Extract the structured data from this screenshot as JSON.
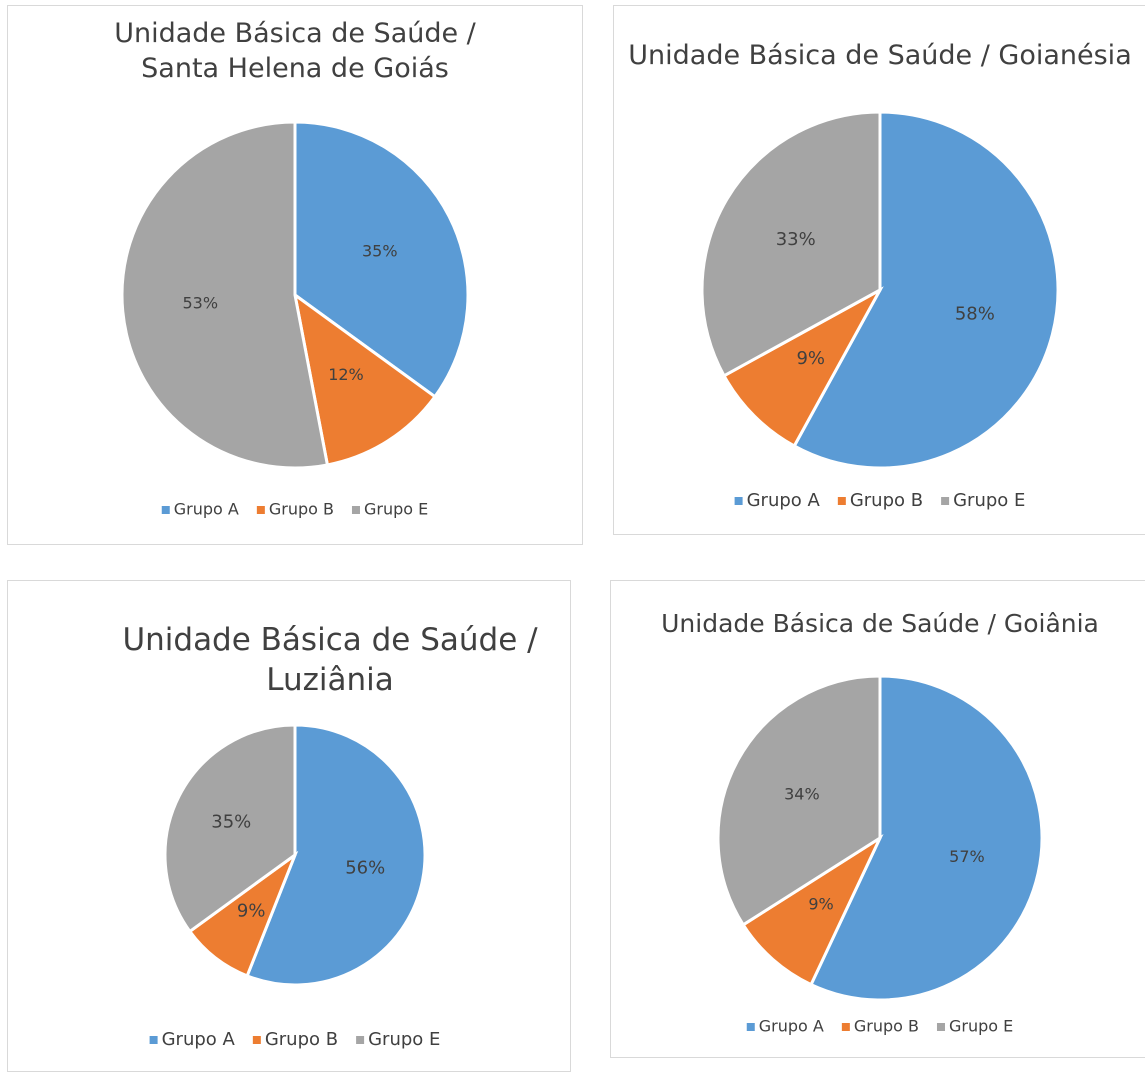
{
  "chart_data": [
    {
      "type": "pie",
      "title": "Unidade Básica de Saúde / Santa Helena de Goiás",
      "categories": [
        "Grupo A",
        "Grupo B",
        "Grupo E"
      ],
      "values": [
        35,
        12,
        53
      ],
      "value_labels": [
        "35%",
        "12%",
        "53%"
      ],
      "colors": [
        "#5b9bd5",
        "#ed7d31",
        "#a5a5a5"
      ],
      "legend": "bottom"
    },
    {
      "type": "pie",
      "title": "Unidade Básica de Saúde / Goianésia",
      "categories": [
        "Grupo A",
        "Grupo B",
        "Grupo E"
      ],
      "values": [
        58,
        9,
        33
      ],
      "value_labels": [
        "58%",
        "9%",
        "33%"
      ],
      "colors": [
        "#5b9bd5",
        "#ed7d31",
        "#a5a5a5"
      ],
      "legend": "bottom"
    },
    {
      "type": "pie",
      "title": "Unidade Básica de Saúde / Luziânia",
      "categories": [
        "Grupo A",
        "Grupo B",
        "Grupo E"
      ],
      "values": [
        56,
        9,
        35
      ],
      "value_labels": [
        "56%",
        "9%",
        "35%"
      ],
      "colors": [
        "#5b9bd5",
        "#ed7d31",
        "#a5a5a5"
      ],
      "legend": "bottom"
    },
    {
      "type": "pie",
      "title": "Unidade Básica de Saúde / Goiânia",
      "categories": [
        "Grupo A",
        "Grupo B",
        "Grupo E"
      ],
      "values": [
        57,
        9,
        34
      ],
      "value_labels": [
        "57%",
        "9%",
        "34%"
      ],
      "colors": [
        "#5b9bd5",
        "#ed7d31",
        "#a5a5a5"
      ],
      "legend": "bottom"
    }
  ]
}
